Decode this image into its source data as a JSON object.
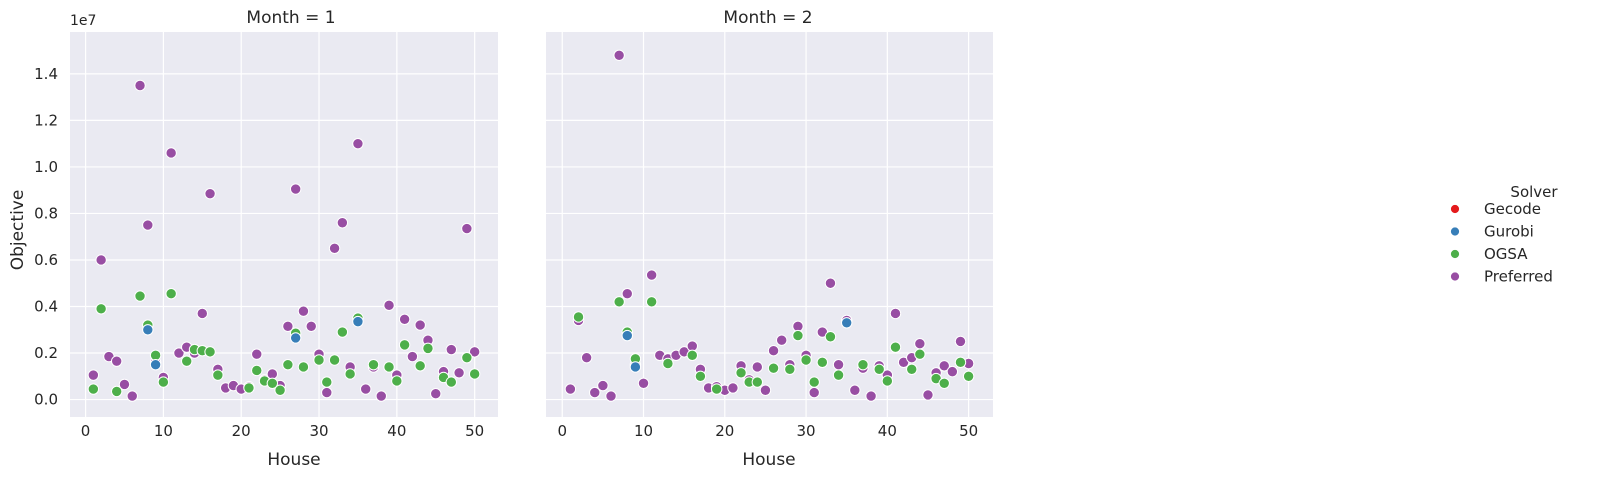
{
  "chart_data": {
    "type": "scatter",
    "facet_title_template": "Month = {v}",
    "xlabel": "House",
    "ylabel": "Objective",
    "y_offset_label": "1e7",
    "xlim": [
      -2,
      53
    ],
    "ylim": [
      -0.75,
      15.8
    ],
    "y_unit": "1e6",
    "xticks": [
      0,
      10,
      20,
      30,
      40,
      50
    ],
    "xtick_labels": [
      "0",
      "10",
      "20",
      "30",
      "40",
      "50"
    ],
    "yticks": [
      0,
      2,
      4,
      6,
      8,
      10,
      12,
      14
    ],
    "ytick_labels": [
      "0.0",
      "0.2",
      "0.4",
      "0.6",
      "0.8",
      "1.0",
      "1.2",
      "1.4"
    ],
    "legend": {
      "title": "Solver",
      "placement": "right",
      "entries": [
        {
          "name": "Gecode",
          "color": "#e41a1c"
        },
        {
          "name": "Gurobi",
          "color": "#377eb8"
        },
        {
          "name": "OGSA",
          "color": "#4daf4a"
        },
        {
          "name": "Preferred",
          "color": "#984ea3"
        }
      ]
    },
    "panels": [
      {
        "month": "1",
        "series": [
          {
            "name": "Gurobi",
            "points": [
              [
                8,
                3.0
              ],
              [
                9,
                1.5
              ],
              [
                27,
                2.65
              ],
              [
                35,
                3.35
              ]
            ]
          },
          {
            "name": "OGSA",
            "points": [
              [
                1,
                0.45
              ],
              [
                2,
                3.9
              ],
              [
                4,
                0.35
              ],
              [
                7,
                4.45
              ],
              [
                8,
                3.2
              ],
              [
                9,
                1.9
              ],
              [
                10,
                0.75
              ],
              [
                11,
                4.55
              ],
              [
                13,
                1.65
              ],
              [
                14,
                2.15
              ],
              [
                15,
                2.1
              ],
              [
                16,
                2.05
              ],
              [
                17,
                1.05
              ],
              [
                21,
                0.5
              ],
              [
                22,
                1.25
              ],
              [
                23,
                0.8
              ],
              [
                24,
                0.7
              ],
              [
                25,
                0.4
              ],
              [
                26,
                1.5
              ],
              [
                27,
                2.85
              ],
              [
                28,
                1.4
              ],
              [
                30,
                1.7
              ],
              [
                31,
                0.75
              ],
              [
                32,
                1.7
              ],
              [
                33,
                2.9
              ],
              [
                34,
                1.1
              ],
              [
                35,
                3.5
              ],
              [
                37,
                1.5
              ],
              [
                39,
                1.4
              ],
              [
                40,
                0.8
              ],
              [
                41,
                2.35
              ],
              [
                43,
                1.45
              ],
              [
                44,
                2.2
              ],
              [
                46,
                0.95
              ],
              [
                47,
                0.75
              ],
              [
                49,
                1.8
              ],
              [
                50,
                1.1
              ]
            ]
          },
          {
            "name": "Preferred",
            "points": [
              [
                1,
                1.05
              ],
              [
                2,
                6.0
              ],
              [
                3,
                1.85
              ],
              [
                4,
                1.65
              ],
              [
                5,
                0.65
              ],
              [
                6,
                0.15
              ],
              [
                7,
                13.5
              ],
              [
                8,
                7.5
              ],
              [
                9,
                1.6
              ],
              [
                10,
                0.95
              ],
              [
                11,
                10.6
              ],
              [
                12,
                2.0
              ],
              [
                13,
                2.25
              ],
              [
                14,
                2.0
              ],
              [
                15,
                3.7
              ],
              [
                16,
                8.85
              ],
              [
                17,
                1.3
              ],
              [
                18,
                0.5
              ],
              [
                19,
                0.6
              ],
              [
                20,
                0.45
              ],
              [
                21,
                0.55
              ],
              [
                22,
                1.95
              ],
              [
                23,
                0.85
              ],
              [
                24,
                1.1
              ],
              [
                25,
                0.6
              ],
              [
                26,
                3.15
              ],
              [
                27,
                9.05
              ],
              [
                28,
                3.8
              ],
              [
                29,
                3.15
              ],
              [
                30,
                1.95
              ],
              [
                31,
                0.3
              ],
              [
                32,
                6.5
              ],
              [
                33,
                7.6
              ],
              [
                34,
                1.4
              ],
              [
                35,
                11.0
              ],
              [
                36,
                0.45
              ],
              [
                37,
                1.4
              ],
              [
                38,
                0.15
              ],
              [
                39,
                4.05
              ],
              [
                40,
                1.05
              ],
              [
                41,
                3.45
              ],
              [
                42,
                1.85
              ],
              [
                43,
                3.2
              ],
              [
                44,
                2.55
              ],
              [
                45,
                0.25
              ],
              [
                46,
                1.2
              ],
              [
                47,
                2.15
              ],
              [
                48,
                1.15
              ],
              [
                49,
                7.35
              ],
              [
                50,
                2.05
              ]
            ]
          }
        ]
      },
      {
        "month": "2",
        "series": [
          {
            "name": "Gurobi",
            "points": [
              [
                8,
                2.75
              ],
              [
                9,
                1.4
              ],
              [
                35,
                3.3
              ]
            ]
          },
          {
            "name": "OGSA",
            "points": [
              [
                2,
                3.55
              ],
              [
                7,
                4.2
              ],
              [
                8,
                2.9
              ],
              [
                9,
                1.75
              ],
              [
                11,
                4.2
              ],
              [
                13,
                1.55
              ],
              [
                16,
                1.9
              ],
              [
                17,
                1.0
              ],
              [
                19,
                0.45
              ],
              [
                22,
                1.15
              ],
              [
                23,
                0.75
              ],
              [
                24,
                0.75
              ],
              [
                26,
                1.35
              ],
              [
                28,
                1.3
              ],
              [
                29,
                2.75
              ],
              [
                30,
                1.7
              ],
              [
                31,
                0.75
              ],
              [
                32,
                1.6
              ],
              [
                33,
                2.7
              ],
              [
                34,
                1.05
              ],
              [
                37,
                1.5
              ],
              [
                39,
                1.3
              ],
              [
                40,
                0.8
              ],
              [
                41,
                2.25
              ],
              [
                43,
                1.3
              ],
              [
                44,
                1.95
              ],
              [
                46,
                0.9
              ],
              [
                47,
                0.7
              ],
              [
                49,
                1.6
              ],
              [
                50,
                1.0
              ]
            ]
          },
          {
            "name": "Preferred",
            "points": [
              [
                1,
                0.45
              ],
              [
                2,
                3.4
              ],
              [
                3,
                1.8
              ],
              [
                4,
                0.3
              ],
              [
                5,
                0.6
              ],
              [
                6,
                0.15
              ],
              [
                7,
                14.8
              ],
              [
                8,
                4.55
              ],
              [
                9,
                1.5
              ],
              [
                10,
                0.7
              ],
              [
                11,
                5.35
              ],
              [
                12,
                1.9
              ],
              [
                13,
                1.75
              ],
              [
                14,
                1.9
              ],
              [
                15,
                2.05
              ],
              [
                16,
                2.3
              ],
              [
                17,
                1.3
              ],
              [
                18,
                0.5
              ],
              [
                19,
                0.55
              ],
              [
                20,
                0.4
              ],
              [
                21,
                0.5
              ],
              [
                22,
                1.45
              ],
              [
                23,
                0.85
              ],
              [
                24,
                1.4
              ],
              [
                25,
                0.4
              ],
              [
                26,
                2.1
              ],
              [
                27,
                2.55
              ],
              [
                28,
                1.5
              ],
              [
                29,
                3.15
              ],
              [
                30,
                1.9
              ],
              [
                31,
                0.3
              ],
              [
                32,
                2.9
              ],
              [
                33,
                5.0
              ],
              [
                34,
                1.5
              ],
              [
                35,
                3.4
              ],
              [
                36,
                0.4
              ],
              [
                37,
                1.35
              ],
              [
                38,
                0.15
              ],
              [
                39,
                1.45
              ],
              [
                40,
                1.05
              ],
              [
                41,
                3.7
              ],
              [
                42,
                1.6
              ],
              [
                43,
                1.8
              ],
              [
                44,
                2.4
              ],
              [
                45,
                0.2
              ],
              [
                46,
                1.15
              ],
              [
                47,
                1.45
              ],
              [
                48,
                1.2
              ],
              [
                49,
                2.5
              ],
              [
                50,
                1.55
              ]
            ]
          }
        ]
      }
    ]
  }
}
